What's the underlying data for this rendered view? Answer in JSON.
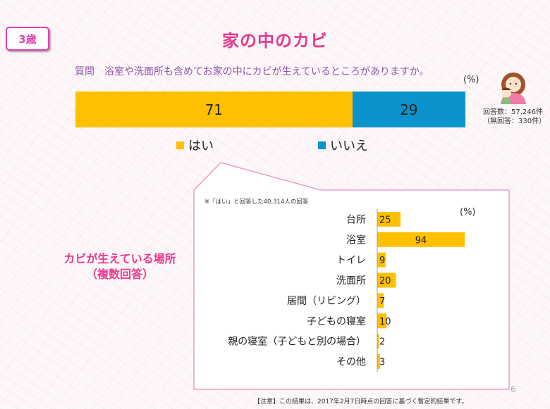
{
  "badge": "3歳",
  "title": "家の中のカビ",
  "question": "質問　浴室や洗面所も含めてお家の中にカビが生えているところがありますか。",
  "pct_top": "(%)",
  "respondents": {
    "line1": "回答数：57,246件",
    "line2": "（無回答：330件）"
  },
  "side_label": {
    "line1": "カビが生えている場所",
    "line2": "（複数回答）"
  },
  "sub_note": "※「はい」と回答した40,314人の回答",
  "pct_bars": "(%)",
  "page_number": "6",
  "footnote": "【注意】この結果は、2017年2月7日時点の回答に基づく暫定的結果です。",
  "colors": {
    "yes": "#ffc000",
    "no": "#0a93cc",
    "accent": "#e8388f"
  },
  "chart_data": [
    {
      "type": "bar",
      "orientation": "horizontal-stacked",
      "series": [
        {
          "name": "はい",
          "values": [
            71
          ],
          "color": "#ffc000"
        },
        {
          "name": "いいえ",
          "values": [
            29
          ],
          "color": "#0a93cc"
        }
      ],
      "unit": "%"
    },
    {
      "type": "bar",
      "orientation": "horizontal",
      "categories": [
        "台所",
        "浴室",
        "トイレ",
        "洗面所",
        "居間（リビング）",
        "子どもの寝室",
        "親の寝室（子どもと別の場合）",
        "その他"
      ],
      "values": [
        25,
        94,
        9,
        20,
        7,
        10,
        2,
        3
      ],
      "unit": "%",
      "xlim": [
        0,
        100
      ],
      "color": "#ffc000"
    }
  ]
}
